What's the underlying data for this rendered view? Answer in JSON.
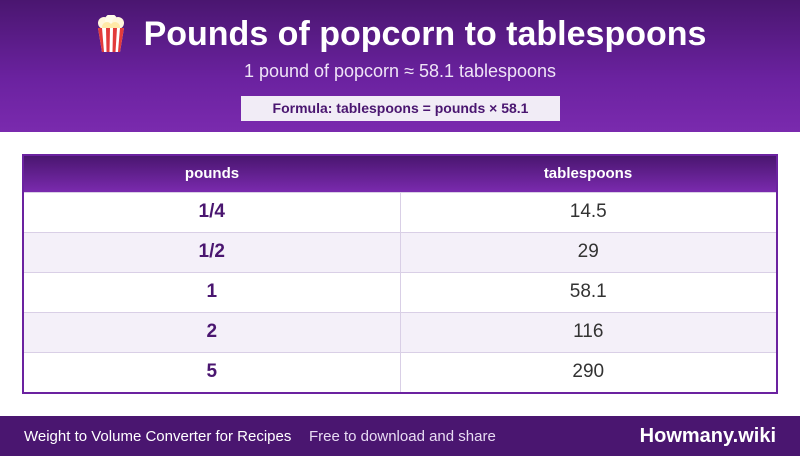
{
  "header": {
    "icon": "popcorn-icon",
    "title": "Pounds of popcorn to tablespoons",
    "subtitle": "1 pound of popcorn ≈ 58.1 tablespoons",
    "formula": "Formula: tablespoons = pounds × 58.1"
  },
  "table": {
    "columns": [
      "pounds",
      "tablespoons"
    ],
    "rows": [
      {
        "pounds": "1/4",
        "tablespoons": "14.5"
      },
      {
        "pounds": "1/2",
        "tablespoons": "29"
      },
      {
        "pounds": "1",
        "tablespoons": "58.1"
      },
      {
        "pounds": "2",
        "tablespoons": "116"
      },
      {
        "pounds": "5",
        "tablespoons": "290"
      }
    ]
  },
  "footer": {
    "left": "Weight to Volume Converter for Recipes",
    "middle": "Free to download and share",
    "brand": "Howmany.wiki"
  },
  "colors": {
    "accent_dark": "#4a1670",
    "accent": "#6b22a0",
    "row_alt": "#f4f0f9"
  }
}
